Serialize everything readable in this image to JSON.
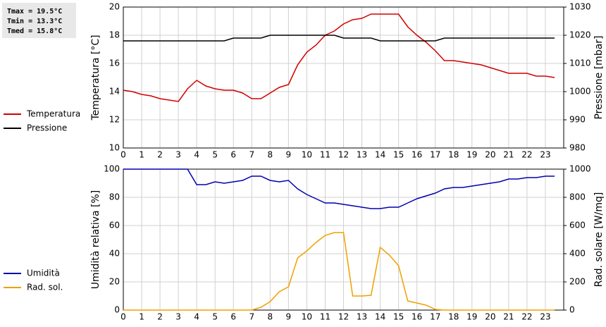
{
  "stats": [
    "Tmax = 19.5°C",
    "Tmin = 13.3°C",
    "Tmed = 15.8°C"
  ],
  "chart_data": [
    {
      "type": "line",
      "grid": true,
      "x": [
        0,
        0.5,
        1,
        1.5,
        2,
        2.5,
        3,
        3.5,
        4,
        4.5,
        5,
        5.5,
        6,
        6.5,
        7,
        7.5,
        8,
        8.5,
        9,
        9.5,
        10,
        10.5,
        11,
        11.5,
        12,
        12.5,
        13,
        13.5,
        14,
        14.5,
        15,
        15.5,
        16,
        16.5,
        17,
        17.5,
        18,
        18.5,
        19,
        19.5,
        20,
        20.5,
        21,
        21.5,
        22,
        22.5,
        23,
        23.5
      ],
      "xlim": [
        0,
        24
      ],
      "xticks": [
        0,
        1,
        2,
        3,
        4,
        5,
        6,
        7,
        8,
        9,
        10,
        11,
        12,
        13,
        14,
        15,
        16,
        17,
        18,
        19,
        20,
        21,
        22,
        23
      ],
      "y_label": "Temperatura [°C]",
      "ylim": [
        10,
        20
      ],
      "yticks": [
        10,
        12,
        14,
        16,
        18,
        20
      ],
      "y2_label": "Pressione [mbar]",
      "y2lim": [
        980,
        1030
      ],
      "y2ticks": [
        980,
        990,
        1000,
        1010,
        1020,
        1030
      ],
      "series": [
        {
          "name": "Temperatura",
          "color": "#d00000",
          "values": [
            14.1,
            14.0,
            13.8,
            13.7,
            13.5,
            13.4,
            13.3,
            14.2,
            14.8,
            14.4,
            14.2,
            14.1,
            14.1,
            13.9,
            13.5,
            13.5,
            13.9,
            14.3,
            14.5,
            15.9,
            16.8,
            17.3,
            18.0,
            18.3,
            18.8,
            19.1,
            19.2,
            19.5,
            19.5,
            19.5,
            19.5,
            18.6,
            18.0,
            17.5,
            16.9,
            16.2,
            16.2,
            16.1,
            16.0,
            15.9,
            15.7,
            15.5,
            15.3,
            15.3,
            15.3,
            15.1,
            15.1,
            15.0
          ]
        },
        {
          "name": "Pressione",
          "color": "#000000",
          "axis": "y2",
          "values": [
            1018,
            1018,
            1018,
            1018,
            1018,
            1018,
            1018,
            1018,
            1018,
            1018,
            1018,
            1018,
            1019,
            1019,
            1019,
            1019,
            1020,
            1020,
            1020,
            1020,
            1020,
            1020,
            1020,
            1020,
            1019,
            1019,
            1019,
            1019,
            1018,
            1018,
            1018,
            1018,
            1018,
            1018,
            1018,
            1019,
            1019,
            1019,
            1019,
            1019,
            1019,
            1019,
            1019,
            1019,
            1019,
            1019,
            1019,
            1019
          ]
        }
      ]
    },
    {
      "type": "line",
      "grid": true,
      "x": [
        0,
        0.5,
        1,
        1.5,
        2,
        2.5,
        3,
        3.5,
        4,
        4.5,
        5,
        5.5,
        6,
        6.5,
        7,
        7.5,
        8,
        8.5,
        9,
        9.5,
        10,
        10.5,
        11,
        11.5,
        12,
        12.5,
        13,
        13.5,
        14,
        14.5,
        15,
        15.5,
        16,
        16.5,
        17,
        17.5,
        18,
        18.5,
        19,
        19.5,
        20,
        20.5,
        21,
        21.5,
        22,
        22.5,
        23,
        23.5
      ],
      "xlim": [
        0,
        24
      ],
      "xticks": [
        0,
        1,
        2,
        3,
        4,
        5,
        6,
        7,
        8,
        9,
        10,
        11,
        12,
        13,
        14,
        15,
        16,
        17,
        18,
        19,
        20,
        21,
        22,
        23
      ],
      "y_label": "Umidità relativa [%]",
      "ylim": [
        0,
        100
      ],
      "yticks": [
        0,
        20,
        40,
        60,
        80,
        100
      ],
      "y2_label": "Rad. solare [W/mq]",
      "y2lim": [
        0,
        1000
      ],
      "y2ticks": [
        0,
        200,
        400,
        600,
        800,
        1000
      ],
      "series": [
        {
          "name": "Umidità",
          "color": "#0000b0",
          "values": [
            100,
            100,
            100,
            100,
            100,
            100,
            100,
            100,
            89,
            89,
            91,
            90,
            91,
            92,
            95,
            95,
            92,
            91,
            92,
            86,
            82,
            79,
            76,
            76,
            75,
            74,
            73,
            72,
            72,
            73,
            73,
            76,
            79,
            81,
            83,
            86,
            87,
            87,
            88,
            89,
            90,
            91,
            93,
            93,
            94,
            94,
            95,
            95
          ]
        },
        {
          "name": "Rad. sol.",
          "color": "#f0a000",
          "axis": "y2",
          "values": [
            0,
            0,
            0,
            0,
            0,
            0,
            0,
            0,
            0,
            0,
            0,
            0,
            0,
            0,
            0,
            20,
            60,
            130,
            165,
            370,
            420,
            480,
            530,
            550,
            550,
            100,
            100,
            105,
            445,
            390,
            315,
            65,
            50,
            35,
            5,
            0,
            0,
            0,
            0,
            0,
            0,
            0,
            0,
            0,
            0,
            0,
            0,
            0
          ]
        }
      ]
    }
  ]
}
